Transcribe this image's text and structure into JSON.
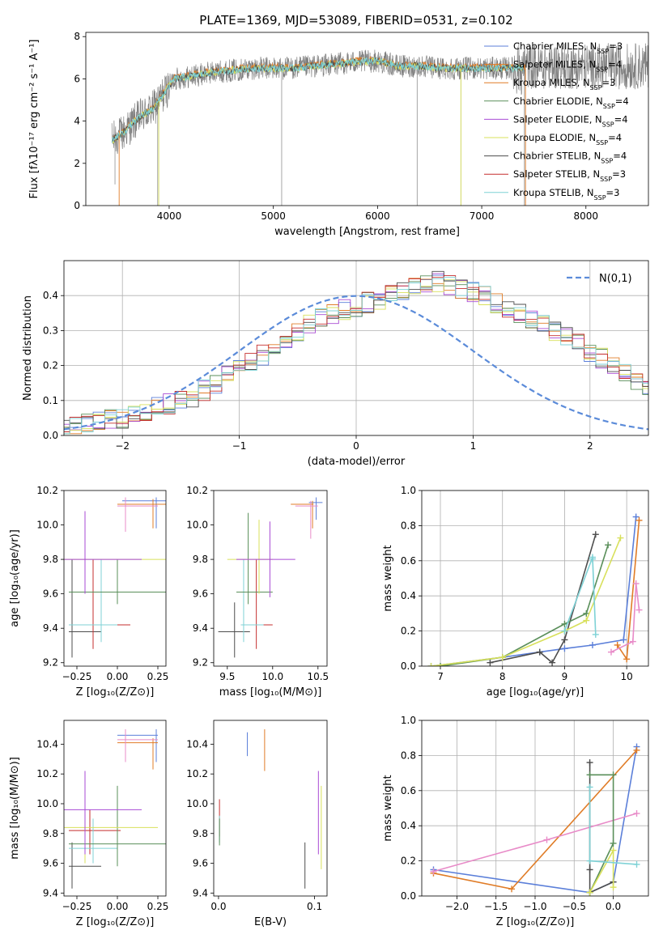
{
  "figure_title": "PLATE=1369, MJD=53089, FIBERID=0531, z=0.102",
  "colors": {
    "Chabrier MILES": "#5B7FD9",
    "Salpeter MILES": "#E07C27",
    "Kroupa MILES": "#E07C27",
    "Chabrier ELODIE": "#5A8F5A",
    "Salpeter ELODIE": "#A94BD4",
    "Kroupa ELODIE": "#D8E05B",
    "Chabrier STELIB": "#4D4D4D",
    "Salpeter STELIB": "#C52E2E",
    "Kroupa STELIB": "#7FD2D6",
    "Kroupa MILES alt": "#E88BC8",
    "data": "#808080",
    "gaussian": "#5B8BD9"
  },
  "chart_data": [
    {
      "id": "spectrum",
      "type": "line",
      "title": "PLATE=1369, MJD=53089, FIBERID=0531, z=0.102",
      "xlabel": "wavelength [Angstrom, rest frame]",
      "ylabel": "Flux [fλ10⁻¹⁷ erg cm⁻² s⁻¹ A⁻¹]",
      "xlim": [
        3200,
        8600
      ],
      "ylim": [
        0,
        8.2
      ],
      "xticks": [
        "4000",
        "5000",
        "6000",
        "7000",
        "8000"
      ],
      "yticks": [
        "0",
        "2",
        "4",
        "6",
        "8"
      ],
      "grid": false,
      "legend_position": "right",
      "continuum": {
        "x": [
          3450,
          3550,
          3650,
          3750,
          3850,
          3950,
          4050,
          4200,
          4400,
          4600,
          4800,
          5000,
          5200,
          5400,
          5600,
          5800,
          6000,
          6200,
          6400,
          6600,
          6800,
          7000,
          7200,
          7400
        ],
        "y": [
          3.1,
          3.4,
          3.9,
          4.3,
          4.6,
          5.3,
          6.0,
          6.1,
          6.3,
          6.4,
          6.5,
          6.5,
          6.5,
          6.6,
          6.7,
          6.8,
          6.85,
          6.6,
          6.6,
          6.5,
          6.5,
          6.5,
          6.5,
          6.5
        ]
      },
      "data_range": [
        3450,
        8600
      ],
      "legend": [
        {
          "label": "Chabrier MILES, N",
          "sub": "SSP",
          "suffix": "=3"
        },
        {
          "label": "Salpeter MILES, N",
          "sub": "SSP",
          "suffix": "=4"
        },
        {
          "label": "Kroupa MILES, N",
          "sub": "SSP",
          "suffix": "=3"
        },
        {
          "label": "Chabrier ELODIE, N",
          "sub": "SSP",
          "suffix": "=4"
        },
        {
          "label": "Salpeter ELODIE, N",
          "sub": "SSP",
          "suffix": "=4"
        },
        {
          "label": "Kroupa ELODIE, N",
          "sub": "SSP",
          "suffix": "=4"
        },
        {
          "label": "Chabrier STELIB, N",
          "sub": "SSP",
          "suffix": "=4"
        },
        {
          "label": "Salpeter STELIB, N",
          "sub": "SSP",
          "suffix": "=3"
        },
        {
          "label": "Kroupa STELIB, N",
          "sub": "SSP",
          "suffix": "=3"
        }
      ]
    },
    {
      "id": "residuals",
      "type": "histogram",
      "xlabel": "(data-model)/error",
      "ylabel": "Normed distribution",
      "xlim": [
        -2.5,
        2.5
      ],
      "ylim": [
        0,
        0.5
      ],
      "xticks": [
        "−2",
        "−1",
        "0",
        "1",
        "2"
      ],
      "yticks": [
        "0.0",
        "0.1",
        "0.2",
        "0.3",
        "0.4"
      ],
      "grid": true,
      "legend": "N(0,1)",
      "legend_position": "top-right",
      "bin_width": 0.1,
      "base_density": [
        0.02,
        0.025,
        0.035,
        0.04,
        0.045,
        0.05,
        0.06,
        0.07,
        0.08,
        0.09,
        0.1,
        0.11,
        0.13,
        0.15,
        0.17,
        0.19,
        0.21,
        0.23,
        0.26,
        0.28,
        0.3,
        0.32,
        0.34,
        0.35,
        0.36,
        0.37,
        0.38,
        0.39,
        0.4,
        0.41,
        0.42,
        0.43,
        0.44,
        0.43,
        0.42,
        0.41,
        0.4,
        0.38,
        0.36,
        0.35,
        0.33,
        0.32,
        0.3,
        0.28,
        0.26,
        0.24,
        0.22,
        0.2,
        0.18,
        0.16,
        0.14
      ]
    },
    {
      "id": "age-vs-Z",
      "type": "errorbar",
      "xlabel": "Z [log₁₀(Z/Z⊙)]",
      "ylabel": "age [log₁₀(age/yr)]",
      "xlim": [
        -0.33,
        0.3
      ],
      "ylim": [
        9.18,
        10.2
      ],
      "xticks": [
        "−0.25",
        "0.00",
        "0.25"
      ],
      "yticks": [
        "9.2",
        "9.4",
        "9.6",
        "9.8",
        "10.0",
        "10.2"
      ]
    },
    {
      "id": "age-vs-mass",
      "type": "errorbar",
      "xlabel": "mass [log₁₀(M/M⊙)]",
      "ylabel": "",
      "xlim": [
        9.35,
        10.6
      ],
      "ylim": [
        9.18,
        10.2
      ],
      "xticks": [
        "9.5",
        "10.0",
        "10.5"
      ],
      "yticks": [
        "9.2",
        "9.4",
        "9.6",
        "9.8",
        "10.0",
        "10.2"
      ]
    },
    {
      "id": "weight-vs-age",
      "type": "line",
      "xlabel": "age [log₁₀(age/yr)]",
      "ylabel": "mass weight",
      "xlim": [
        6.7,
        10.35
      ],
      "ylim": [
        0,
        1.0
      ],
      "xticks": [
        "7",
        "8",
        "9",
        "10"
      ],
      "yticks": [
        "0.0",
        "0.2",
        "0.4",
        "0.6",
        "0.8",
        "1.0"
      ],
      "grid": true,
      "series": [
        {
          "color": "Chabrier MILES",
          "x": [
            6.85,
            8.0,
            8.6,
            9.0,
            9.45,
            9.95,
            10.15
          ],
          "y": [
            0.0,
            0.05,
            0.08,
            0.1,
            0.12,
            0.15,
            0.85
          ]
        },
        {
          "color": "Salpeter MILES",
          "x": [
            9.85,
            10.0,
            10.2
          ],
          "y": [
            0.12,
            0.04,
            0.83
          ]
        },
        {
          "color": "Chabrier STELIB",
          "x": [
            7.8,
            8.6,
            8.8,
            9.0,
            9.5
          ],
          "y": [
            0.02,
            0.08,
            0.02,
            0.15,
            0.75
          ]
        },
        {
          "color": "Chabrier ELODIE",
          "x": [
            7.0,
            8.0,
            9.0,
            9.35,
            9.7
          ],
          "y": [
            0.0,
            0.05,
            0.24,
            0.3,
            0.69
          ]
        },
        {
          "color": "Kroupa ELODIE",
          "x": [
            6.85,
            8.0,
            9.0,
            9.35,
            9.9
          ],
          "y": [
            0.0,
            0.05,
            0.2,
            0.26,
            0.73
          ]
        },
        {
          "color": "Kroupa STELIB",
          "x": [
            9.0,
            9.45,
            9.5,
            9.45
          ],
          "y": [
            0.2,
            0.62,
            0.18,
            0.61
          ]
        },
        {
          "color": "Kroupa MILES alt",
          "x": [
            9.75,
            10.1,
            10.15,
            10.2
          ],
          "y": [
            0.08,
            0.14,
            0.47,
            0.32
          ]
        }
      ]
    },
    {
      "id": "mass-vs-Z",
      "type": "errorbar",
      "xlabel": "Z [log₁₀(Z/Z⊙)]",
      "ylabel": "mass [log₁₀(M/M⊙)]",
      "xlim": [
        -0.33,
        0.3
      ],
      "ylim": [
        9.38,
        10.56
      ],
      "xticks": [
        "−0.25",
        "0.00",
        "0.25"
      ],
      "yticks": [
        "9.4",
        "9.6",
        "9.8",
        "10.0",
        "10.2",
        "10.4"
      ]
    },
    {
      "id": "mass-vs-ebv",
      "type": "errorbar",
      "xlabel": "E(B-V)",
      "ylabel": "",
      "xlim": [
        -0.005,
        0.113
      ],
      "ylim": [
        9.38,
        10.56
      ],
      "xticks": [
        "0.0",
        "0.1"
      ],
      "yticks": [
        "9.4",
        "9.6",
        "9.8",
        "10.0",
        "10.2",
        "10.4"
      ]
    },
    {
      "id": "weight-vs-Z",
      "type": "line",
      "xlabel": "Z [log₁₀(Z/Z⊙)]",
      "ylabel": "mass weight",
      "xlim": [
        -2.45,
        0.45
      ],
      "ylim": [
        0,
        1.0
      ],
      "xticks": [
        "−2.0",
        "−1.5",
        "−1.0",
        "−0.5",
        "0.0"
      ],
      "yticks": [
        "0.0",
        "0.2",
        "0.4",
        "0.6",
        "0.8",
        "1.0"
      ],
      "grid": true,
      "series": [
        {
          "color": "Chabrier MILES",
          "x": [
            -2.3,
            -0.3,
            0.0,
            0.3
          ],
          "y": [
            0.15,
            0.02,
            0.08,
            0.85
          ]
        },
        {
          "color": "Salpeter MILES",
          "x": [
            -2.3,
            -1.3,
            0.3
          ],
          "y": [
            0.13,
            0.04,
            0.83
          ]
        },
        {
          "color": "Kroupa MILES alt",
          "x": [
            -2.3,
            -0.85,
            0.3
          ],
          "y": [
            0.14,
            0.32,
            0.47
          ]
        },
        {
          "color": "Chabrier STELIB",
          "x": [
            -0.3,
            -0.3,
            -0.3,
            0.0
          ],
          "y": [
            0.76,
            0.15,
            0.02,
            0.08
          ]
        },
        {
          "color": "Chabrier ELODIE",
          "x": [
            -0.3,
            0.0,
            0.0,
            -0.3
          ],
          "y": [
            0.69,
            0.69,
            0.3,
            0.02
          ]
        },
        {
          "color": "Kroupa ELODIE",
          "x": [
            -0.3,
            0.0,
            0.0
          ],
          "y": [
            0.02,
            0.26,
            0.05
          ]
        },
        {
          "color": "Kroupa STELIB",
          "x": [
            -0.3,
            -0.3,
            0.3
          ],
          "y": [
            0.62,
            0.2,
            0.18
          ]
        }
      ]
    }
  ]
}
